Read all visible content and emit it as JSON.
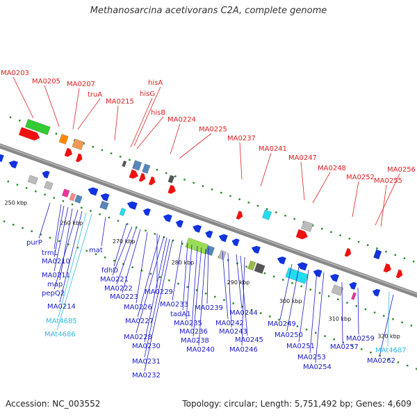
{
  "title": "Methanosarcina acetivorans C2A, complete genome",
  "footer": {
    "accession": "Accession: NC_003552",
    "summary": "Topology: circular; Length: 5,751,492 bp; Genes: 4,609"
  },
  "colors": {
    "label_top": "#e02020",
    "label_bottom": "#1a1acc",
    "label_trna": "#33bbdd",
    "backbone": "#888888",
    "dots": "#2a8a2a"
  },
  "ticks": [
    "250 kbp",
    "260 kbp",
    "270 kbp",
    "280 kbp",
    "290 kbp",
    "300 kbp",
    "310 kbp",
    "320 kbp"
  ],
  "top_labels": [
    "MA0203",
    "MA0205",
    "MA0207",
    "truA",
    "MA0215",
    "hisA",
    "hisG",
    "hisB",
    "MA0224",
    "MA0225",
    "MA0237",
    "MA0241",
    "MA0247",
    "MA0248",
    "MA0252",
    "MA0256",
    "MA0255"
  ],
  "bottom_labels": [
    "purP",
    "trmL",
    "MA0210",
    "MA0211",
    "map",
    "pepQ2",
    "MA0214",
    "MAt4685",
    "MAt4686",
    "mat",
    "fdhD",
    "MA0221",
    "MA0222",
    "MA0223",
    "MA0226",
    "MA0229",
    "MA0227",
    "MA0228",
    "MA0230",
    "MA0231",
    "MA0232",
    "MA0233",
    "tadA1",
    "MA0235",
    "MA0236",
    "MA0238",
    "MA0240",
    "MA0239",
    "MA0242",
    "MA0243",
    "MA0244",
    "MA0245",
    "MA0246",
    "MA0249",
    "MA0250",
    "MA0251",
    "MA0253",
    "MA0254",
    "MA0257",
    "MA0259",
    "MAt4687",
    "MA0262"
  ]
}
